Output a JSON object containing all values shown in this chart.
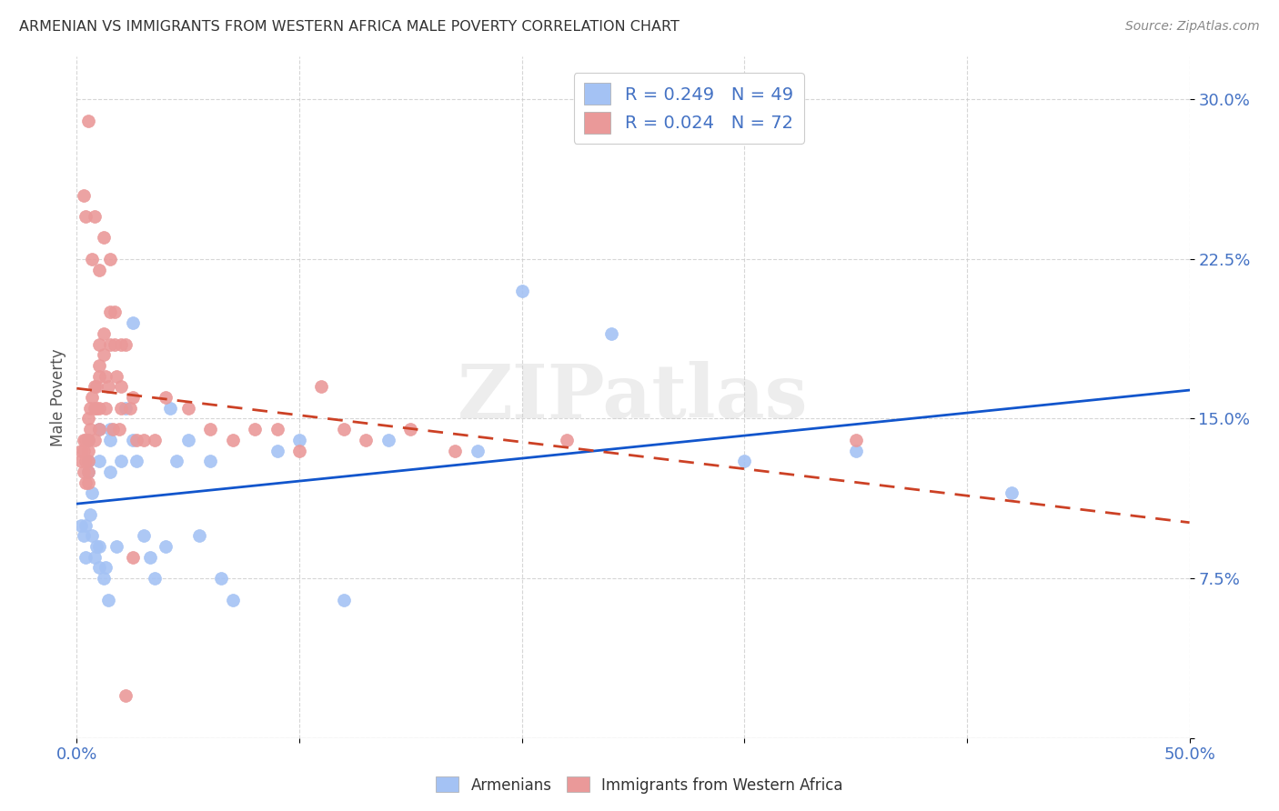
{
  "title": "ARMENIAN VS IMMIGRANTS FROM WESTERN AFRICA MALE POVERTY CORRELATION CHART",
  "source": "Source: ZipAtlas.com",
  "ylabel": "Male Poverty",
  "xlim": [
    0.0,
    0.5
  ],
  "ylim": [
    0.0,
    0.32
  ],
  "xticks": [
    0.0,
    0.1,
    0.2,
    0.3,
    0.4,
    0.5
  ],
  "xticklabels": [
    "0.0%",
    "",
    "",
    "",
    "",
    "50.0%"
  ],
  "yticks": [
    0.0,
    0.075,
    0.15,
    0.225,
    0.3
  ],
  "yticklabels": [
    "",
    "7.5%",
    "15.0%",
    "22.5%",
    "30.0%"
  ],
  "legend_r1": "R = 0.249",
  "legend_n1": "N = 49",
  "legend_r2": "R = 0.024",
  "legend_n2": "N = 72",
  "legend_label1": "Armenians",
  "legend_label2": "Immigrants from Western Africa",
  "color_blue": "#a4c2f4",
  "color_pink": "#ea9999",
  "color_blue_line": "#1155cc",
  "color_pink_line": "#cc4125",
  "watermark": "ZIPatlas",
  "armenian_x": [
    0.002,
    0.003,
    0.004,
    0.004,
    0.005,
    0.005,
    0.005,
    0.006,
    0.007,
    0.007,
    0.008,
    0.009,
    0.01,
    0.01,
    0.01,
    0.01,
    0.012,
    0.013,
    0.014,
    0.015,
    0.015,
    0.015,
    0.018,
    0.02,
    0.022,
    0.025,
    0.025,
    0.027,
    0.03,
    0.033,
    0.035,
    0.04,
    0.042,
    0.045,
    0.05,
    0.055,
    0.06,
    0.065,
    0.07,
    0.09,
    0.1,
    0.12,
    0.14,
    0.18,
    0.2,
    0.24,
    0.3,
    0.35,
    0.42
  ],
  "armenian_y": [
    0.1,
    0.095,
    0.085,
    0.1,
    0.13,
    0.125,
    0.14,
    0.105,
    0.095,
    0.115,
    0.085,
    0.09,
    0.08,
    0.09,
    0.13,
    0.145,
    0.075,
    0.08,
    0.065,
    0.125,
    0.14,
    0.145,
    0.09,
    0.13,
    0.155,
    0.14,
    0.195,
    0.13,
    0.095,
    0.085,
    0.075,
    0.09,
    0.155,
    0.13,
    0.14,
    0.095,
    0.13,
    0.075,
    0.065,
    0.135,
    0.14,
    0.065,
    0.14,
    0.135,
    0.21,
    0.19,
    0.13,
    0.135,
    0.115
  ],
  "western_africa_x": [
    0.002,
    0.002,
    0.003,
    0.003,
    0.003,
    0.004,
    0.004,
    0.004,
    0.005,
    0.005,
    0.005,
    0.005,
    0.005,
    0.005,
    0.006,
    0.006,
    0.007,
    0.008,
    0.008,
    0.008,
    0.009,
    0.009,
    0.01,
    0.01,
    0.01,
    0.01,
    0.01,
    0.012,
    0.012,
    0.013,
    0.013,
    0.014,
    0.015,
    0.015,
    0.016,
    0.017,
    0.018,
    0.019,
    0.02,
    0.02,
    0.022,
    0.024,
    0.025,
    0.027,
    0.03,
    0.035,
    0.04,
    0.05,
    0.06,
    0.07,
    0.08,
    0.09,
    0.1,
    0.11,
    0.12,
    0.13,
    0.15,
    0.17,
    0.22,
    0.35,
    0.003,
    0.004,
    0.005,
    0.007,
    0.008,
    0.01,
    0.012,
    0.015,
    0.017,
    0.02,
    0.022,
    0.025
  ],
  "western_africa_y": [
    0.135,
    0.13,
    0.14,
    0.135,
    0.125,
    0.12,
    0.13,
    0.14,
    0.14,
    0.135,
    0.13,
    0.125,
    0.12,
    0.15,
    0.155,
    0.145,
    0.16,
    0.155,
    0.165,
    0.14,
    0.155,
    0.165,
    0.185,
    0.17,
    0.175,
    0.145,
    0.155,
    0.18,
    0.19,
    0.155,
    0.17,
    0.165,
    0.185,
    0.2,
    0.145,
    0.185,
    0.17,
    0.145,
    0.155,
    0.165,
    0.185,
    0.155,
    0.16,
    0.14,
    0.14,
    0.14,
    0.16,
    0.155,
    0.145,
    0.14,
    0.145,
    0.145,
    0.135,
    0.165,
    0.145,
    0.14,
    0.145,
    0.135,
    0.14,
    0.14,
    0.255,
    0.245,
    0.29,
    0.225,
    0.245,
    0.22,
    0.235,
    0.225,
    0.2,
    0.185,
    0.02,
    0.085
  ]
}
